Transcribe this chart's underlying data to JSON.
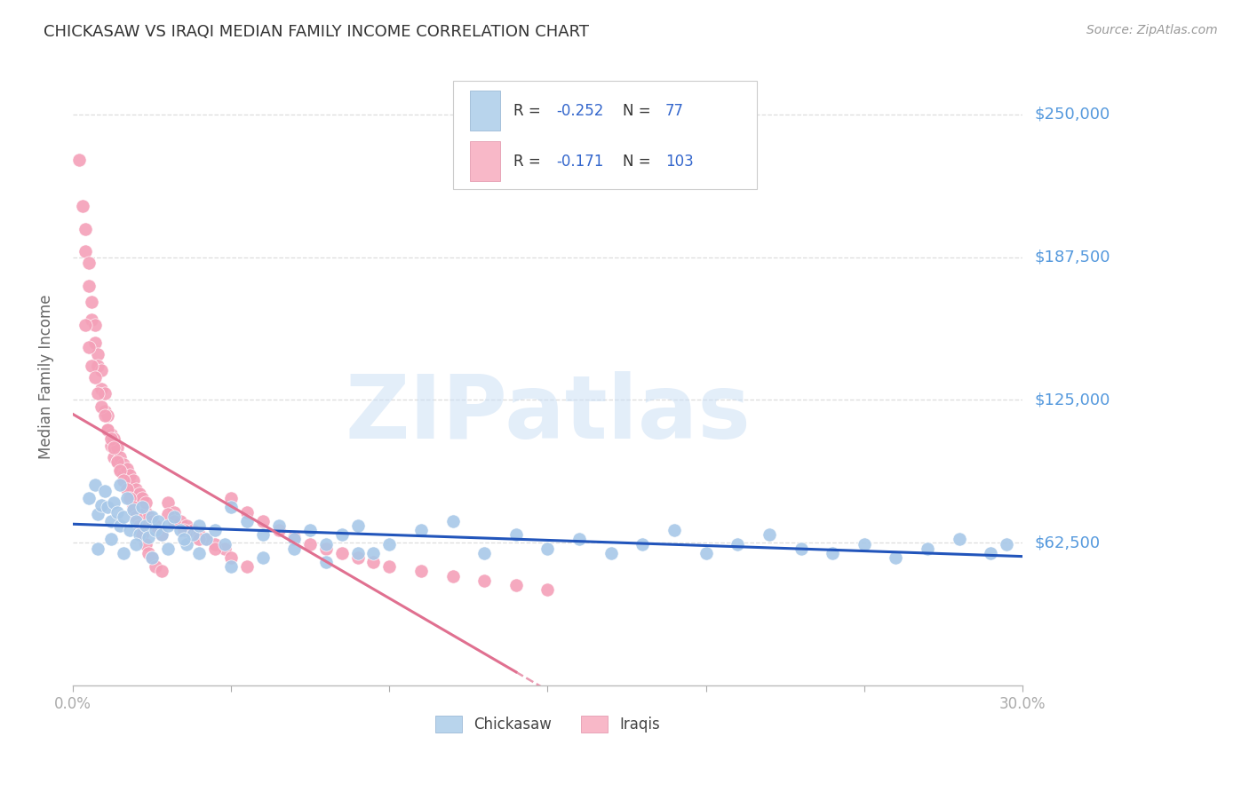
{
  "title": "CHICKASAW VS IRAQI MEDIAN FAMILY INCOME CORRELATION CHART",
  "source": "Source: ZipAtlas.com",
  "ylabel": "Median Family Income",
  "y_ticks": [
    62500,
    125000,
    187500,
    250000
  ],
  "y_tick_labels": [
    "$62,500",
    "$125,000",
    "$187,500",
    "$250,000"
  ],
  "y_min": 0,
  "y_max": 270000,
  "x_min": 0.0,
  "x_max": 0.3,
  "chickasaw_color": "#a8c8e8",
  "iraqi_color": "#f4a0b8",
  "chickasaw_line_color": "#2255bb",
  "iraqi_line_color": "#e07090",
  "legend_box_color_chickasaw": "#b8d4ec",
  "legend_box_color_iraqi": "#f8b8c8",
  "R_chickasaw": -0.252,
  "N_chickasaw": 77,
  "R_iraqi": -0.171,
  "N_iraqi": 103,
  "watermark": "ZIPatlas",
  "watermark_color": "#cce0f5",
  "background_color": "#ffffff",
  "grid_color": "#dddddd",
  "title_color": "#333333",
  "right_label_color": "#5599dd",
  "chickasaw_scatter_x": [
    0.005,
    0.007,
    0.008,
    0.009,
    0.01,
    0.011,
    0.012,
    0.013,
    0.014,
    0.015,
    0.015,
    0.016,
    0.017,
    0.018,
    0.019,
    0.02,
    0.021,
    0.022,
    0.023,
    0.024,
    0.025,
    0.026,
    0.027,
    0.028,
    0.03,
    0.032,
    0.034,
    0.036,
    0.038,
    0.04,
    0.042,
    0.045,
    0.048,
    0.05,
    0.055,
    0.06,
    0.065,
    0.07,
    0.075,
    0.08,
    0.085,
    0.09,
    0.095,
    0.1,
    0.11,
    0.12,
    0.13,
    0.14,
    0.15,
    0.16,
    0.17,
    0.18,
    0.19,
    0.2,
    0.21,
    0.22,
    0.23,
    0.24,
    0.25,
    0.26,
    0.27,
    0.28,
    0.29,
    0.295,
    0.008,
    0.012,
    0.016,
    0.02,
    0.025,
    0.03,
    0.035,
    0.04,
    0.05,
    0.06,
    0.07,
    0.08,
    0.09
  ],
  "chickasaw_scatter_y": [
    82000,
    88000,
    75000,
    79000,
    85000,
    78000,
    72000,
    80000,
    76000,
    88000,
    70000,
    74000,
    82000,
    68000,
    77000,
    72000,
    66000,
    78000,
    70000,
    65000,
    74000,
    68000,
    72000,
    66000,
    70000,
    74000,
    68000,
    62000,
    66000,
    70000,
    64000,
    68000,
    62000,
    78000,
    72000,
    66000,
    70000,
    64000,
    68000,
    62000,
    66000,
    70000,
    58000,
    62000,
    68000,
    72000,
    58000,
    66000,
    60000,
    64000,
    58000,
    62000,
    68000,
    58000,
    62000,
    66000,
    60000,
    58000,
    62000,
    56000,
    60000,
    64000,
    58000,
    62000,
    60000,
    64000,
    58000,
    62000,
    56000,
    60000,
    64000,
    58000,
    52000,
    56000,
    60000,
    54000,
    58000
  ],
  "iraqi_scatter_x": [
    0.002,
    0.003,
    0.004,
    0.004,
    0.005,
    0.005,
    0.006,
    0.006,
    0.007,
    0.007,
    0.008,
    0.008,
    0.009,
    0.009,
    0.01,
    0.01,
    0.011,
    0.011,
    0.012,
    0.012,
    0.013,
    0.013,
    0.014,
    0.014,
    0.015,
    0.015,
    0.016,
    0.016,
    0.017,
    0.017,
    0.018,
    0.018,
    0.019,
    0.019,
    0.02,
    0.02,
    0.021,
    0.021,
    0.022,
    0.022,
    0.023,
    0.023,
    0.024,
    0.025,
    0.026,
    0.027,
    0.028,
    0.03,
    0.032,
    0.034,
    0.036,
    0.038,
    0.04,
    0.042,
    0.045,
    0.048,
    0.05,
    0.055,
    0.06,
    0.065,
    0.07,
    0.075,
    0.08,
    0.085,
    0.09,
    0.095,
    0.1,
    0.11,
    0.12,
    0.13,
    0.14,
    0.15,
    0.004,
    0.005,
    0.006,
    0.007,
    0.008,
    0.009,
    0.01,
    0.011,
    0.012,
    0.013,
    0.014,
    0.015,
    0.016,
    0.017,
    0.018,
    0.019,
    0.02,
    0.021,
    0.022,
    0.023,
    0.024,
    0.025,
    0.026,
    0.028,
    0.03,
    0.032,
    0.035,
    0.04,
    0.045,
    0.05,
    0.055
  ],
  "iraqi_scatter_y": [
    230000,
    210000,
    200000,
    190000,
    185000,
    175000,
    168000,
    160000,
    158000,
    150000,
    145000,
    140000,
    138000,
    130000,
    128000,
    120000,
    118000,
    112000,
    110000,
    105000,
    100000,
    108000,
    98000,
    104000,
    95000,
    100000,
    92000,
    97000,
    90000,
    95000,
    88000,
    92000,
    85000,
    90000,
    82000,
    86000,
    80000,
    84000,
    78000,
    82000,
    76000,
    80000,
    74000,
    72000,
    70000,
    68000,
    66000,
    80000,
    76000,
    72000,
    70000,
    68000,
    66000,
    64000,
    62000,
    60000,
    82000,
    76000,
    72000,
    68000,
    65000,
    62000,
    60000,
    58000,
    56000,
    54000,
    52000,
    50000,
    48000,
    46000,
    44000,
    42000,
    158000,
    148000,
    140000,
    135000,
    128000,
    122000,
    118000,
    112000,
    108000,
    104000,
    98000,
    94000,
    90000,
    86000,
    82000,
    78000,
    74000,
    70000,
    66000,
    62000,
    58000,
    56000,
    52000,
    50000,
    75000,
    72000,
    68000,
    64000,
    60000,
    56000,
    52000
  ]
}
